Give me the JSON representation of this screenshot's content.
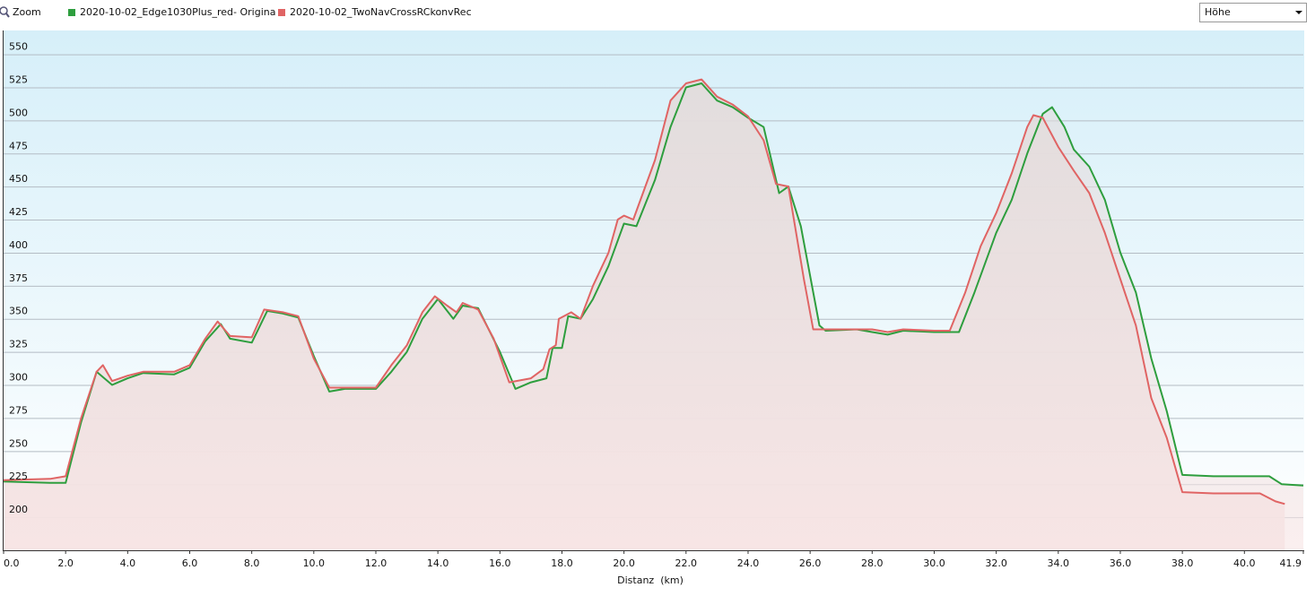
{
  "toolbar": {
    "zoom": "Zoom",
    "selector": "Höhe"
  },
  "chart_data": {
    "type": "line",
    "x_label": "Distanz  (km)",
    "xlim": [
      0,
      41.9
    ],
    "ylim": [
      175,
      568
    ],
    "yticks": [
      200,
      225,
      250,
      275,
      300,
      325,
      350,
      375,
      400,
      425,
      450,
      475,
      500,
      525,
      550
    ],
    "xticks": [
      {
        "value": 0,
        "label": "0.0"
      },
      {
        "value": 2,
        "label": "2.0"
      },
      {
        "value": 4,
        "label": "4.0"
      },
      {
        "value": 6,
        "label": "6.0"
      },
      {
        "value": 8,
        "label": "8.0"
      },
      {
        "value": 10,
        "label": "10.0"
      },
      {
        "value": 12,
        "label": "12.0"
      },
      {
        "value": 14,
        "label": "14.0"
      },
      {
        "value": 16,
        "label": "16.0"
      },
      {
        "value": 18,
        "label": "18.0"
      },
      {
        "value": 20,
        "label": "20.0"
      },
      {
        "value": 22,
        "label": "22.0"
      },
      {
        "value": 24,
        "label": "24.0"
      },
      {
        "value": 26,
        "label": "26.0"
      },
      {
        "value": 28,
        "label": "28.0"
      },
      {
        "value": 30,
        "label": "30.0"
      },
      {
        "value": 32,
        "label": "32.0"
      },
      {
        "value": 34,
        "label": "34.0"
      },
      {
        "value": 36,
        "label": "36.0"
      },
      {
        "value": 38,
        "label": "38.0"
      },
      {
        "value": 40,
        "label": "40.0"
      },
      41.9
    ],
    "grid": true,
    "series": [
      {
        "name": "2020-10-02_Edge1030Plus_red- Origina",
        "color": "#2e9e3e",
        "x": [
          0,
          1.5,
          2.0,
          2.5,
          3.0,
          3.5,
          4.0,
          4.5,
          5.5,
          6.0,
          6.5,
          7.0,
          7.3,
          8.0,
          8.5,
          9.0,
          9.5,
          10.0,
          10.5,
          11.0,
          12.0,
          12.5,
          13.0,
          13.5,
          14.0,
          14.5,
          14.8,
          15.3,
          16.0,
          16.5,
          17.0,
          17.5,
          17.7,
          18.0,
          18.2,
          18.6,
          19.0,
          19.5,
          20.0,
          20.4,
          21.0,
          21.5,
          22.0,
          22.5,
          23.0,
          23.5,
          24.0,
          24.5,
          25.0,
          25.3,
          25.7,
          26.3,
          26.5,
          27.5,
          28.0,
          28.5,
          29.0,
          30.0,
          30.8,
          31.3,
          32.0,
          32.5,
          33.0,
          33.5,
          33.8,
          34.2,
          34.5,
          35.0,
          35.5,
          36.0,
          36.5,
          37.0,
          37.5,
          38.0,
          39.0,
          40.0,
          40.8,
          41.2,
          41.9
        ],
        "values": [
          227,
          226,
          226,
          272,
          310,
          300,
          305,
          309,
          308,
          313,
          333,
          346,
          335,
          332,
          356,
          354,
          351,
          322,
          295,
          297,
          297,
          310,
          325,
          350,
          365,
          350,
          360,
          358,
          325,
          297,
          302,
          305,
          328,
          328,
          352,
          350,
          365,
          390,
          422,
          420,
          455,
          495,
          525,
          528,
          515,
          510,
          502,
          495,
          445,
          450,
          420,
          345,
          341,
          342,
          340,
          338,
          341,
          340,
          340,
          370,
          415,
          440,
          475,
          505,
          510,
          495,
          478,
          465,
          440,
          400,
          370,
          320,
          280,
          232,
          231,
          231,
          231,
          225,
          224
        ]
      },
      {
        "name": "2020-10-02_TwoNavCrossRCkonvRec",
        "color": "#e06464",
        "x": [
          0,
          1.5,
          2.0,
          2.5,
          3.0,
          3.2,
          3.5,
          4.0,
          4.5,
          5.5,
          6.0,
          6.5,
          6.9,
          7.3,
          8.0,
          8.4,
          9.0,
          9.5,
          10.0,
          10.5,
          11.0,
          12.0,
          12.5,
          13.0,
          13.5,
          13.9,
          14.3,
          14.6,
          14.8,
          15.3,
          15.8,
          16.3,
          17.0,
          17.4,
          17.6,
          17.8,
          17.9,
          18.3,
          18.6,
          19.0,
          19.5,
          19.8,
          20.0,
          20.3,
          21.0,
          21.5,
          22.0,
          22.5,
          23.0,
          23.5,
          24.0,
          24.5,
          24.9,
          25.3,
          25.8,
          26.1,
          27.0,
          28.0,
          28.5,
          29.0,
          30.0,
          30.5,
          31.0,
          31.5,
          32.0,
          32.5,
          33.0,
          33.2,
          33.5,
          34.0,
          34.5,
          35.0,
          35.5,
          36.0,
          36.5,
          37.0,
          37.5,
          38.0,
          39.0,
          40.0,
          40.5,
          41.0,
          41.3
        ],
        "values": [
          228,
          229,
          231,
          275,
          310,
          315,
          303,
          307,
          310,
          310,
          315,
          335,
          348,
          337,
          336,
          357,
          355,
          352,
          320,
          298,
          298,
          298,
          315,
          330,
          355,
          367,
          360,
          355,
          362,
          357,
          335,
          302,
          305,
          312,
          327,
          330,
          350,
          355,
          350,
          375,
          400,
          425,
          428,
          425,
          470,
          515,
          528,
          531,
          518,
          512,
          503,
          485,
          452,
          450,
          380,
          342,
          342,
          342,
          340,
          342,
          341,
          341,
          370,
          405,
          430,
          460,
          495,
          504,
          502,
          480,
          462,
          445,
          415,
          380,
          345,
          290,
          260,
          219,
          218,
          218,
          218,
          212,
          210
        ]
      }
    ]
  }
}
